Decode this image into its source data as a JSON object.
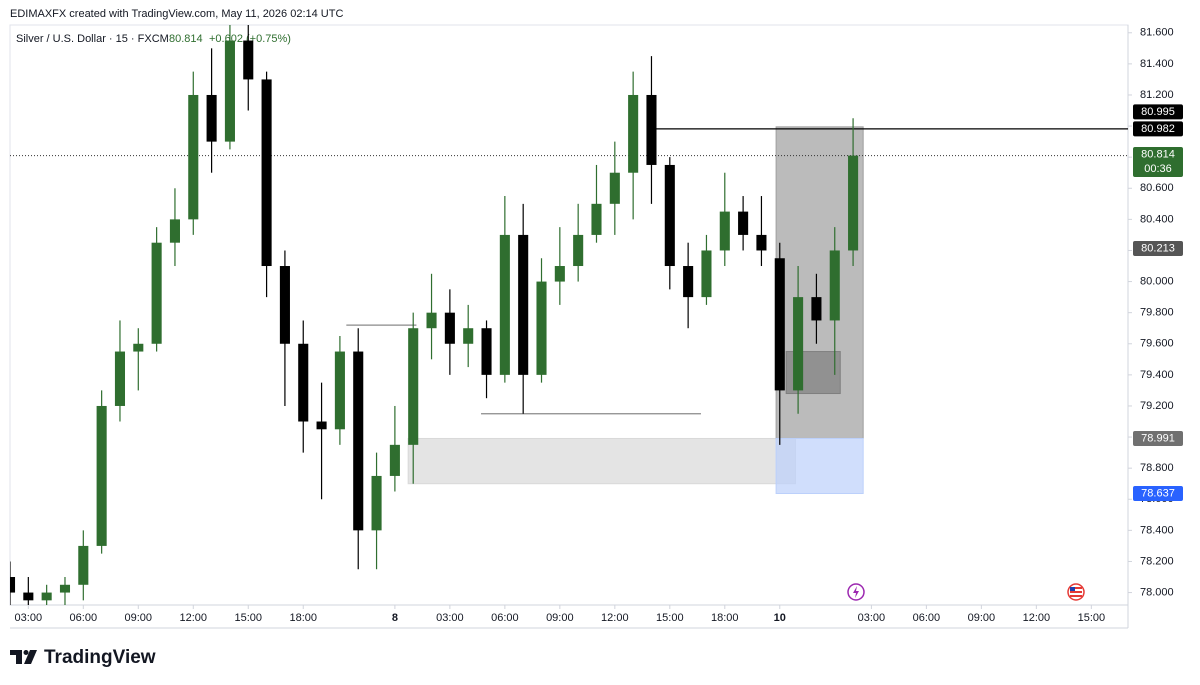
{
  "chart_data": {
    "type": "candlestick",
    "attribution": "EDIMAXFX created with TradingView.com, May 11, 2026 02:14 UTC",
    "title": "Silver / U.S. Dollar · 15 · FXCM",
    "last": "80.814",
    "change": "+0.602 (+0.75%)",
    "brand": "TradingView",
    "up_color": "#2f6e2f",
    "down_color": "#000000",
    "grid": false,
    "xlim": [
      -4,
      240
    ],
    "ylim": [
      77.92,
      81.65
    ],
    "xticks": [
      {
        "value": 0,
        "label": "03:00"
      },
      {
        "value": 12,
        "label": "06:00"
      },
      {
        "value": 24,
        "label": "09:00"
      },
      {
        "value": 36,
        "label": "12:00"
      },
      {
        "value": 48,
        "label": "15:00"
      },
      {
        "value": 60,
        "label": "18:00"
      },
      {
        "value": 80,
        "label": "8",
        "bold": true
      },
      {
        "value": 92,
        "label": "03:00"
      },
      {
        "value": 104,
        "label": "06:00"
      },
      {
        "value": 116,
        "label": "09:00"
      },
      {
        "value": 128,
        "label": "12:00"
      },
      {
        "value": 140,
        "label": "15:00"
      },
      {
        "value": 152,
        "label": "18:00"
      },
      {
        "value": 164,
        "label": "10",
        "bold": true
      },
      {
        "value": 184,
        "label": "03:00"
      },
      {
        "value": 196,
        "label": "06:00"
      },
      {
        "value": 208,
        "label": "09:00"
      },
      {
        "value": 220,
        "label": "12:00"
      },
      {
        "value": 232,
        "label": "15:00"
      }
    ],
    "yticks": [
      {
        "value": 78.0,
        "label": "78.000"
      },
      {
        "value": 78.2,
        "label": "78.200"
      },
      {
        "value": 78.4,
        "label": "78.400"
      },
      {
        "value": 78.6,
        "label": "78.600"
      },
      {
        "value": 78.8,
        "label": "78.800"
      },
      {
        "value": 79.0,
        "label": "79.000"
      },
      {
        "value": 79.2,
        "label": "79.200"
      },
      {
        "value": 79.4,
        "label": "79.400"
      },
      {
        "value": 79.6,
        "label": "79.600"
      },
      {
        "value": 79.8,
        "label": "79.800"
      },
      {
        "value": 80.0,
        "label": "80.000"
      },
      {
        "value": 80.2,
        "label": "80.200"
      },
      {
        "value": 80.4,
        "label": "80.400"
      },
      {
        "value": 80.6,
        "label": "80.600"
      },
      {
        "value": 80.8,
        "label": "80.800"
      },
      {
        "value": 81.0,
        "label": "81.000"
      },
      {
        "value": 81.2,
        "label": "81.200"
      },
      {
        "value": 81.4,
        "label": "81.400"
      },
      {
        "value": 81.6,
        "label": "81.600"
      }
    ],
    "x": [
      -4,
      0,
      4,
      8,
      12,
      16,
      20,
      24,
      28,
      32,
      36,
      40,
      44,
      48,
      52,
      56,
      60,
      64,
      68,
      72,
      76,
      80,
      84,
      88,
      92,
      96,
      100,
      104,
      108,
      112,
      116,
      120,
      124,
      128,
      132,
      136,
      140,
      144,
      148,
      152,
      156,
      160,
      164,
      168,
      172,
      176,
      180
    ],
    "open": [
      78.1,
      78.0,
      77.95,
      78.0,
      78.05,
      78.3,
      79.2,
      79.55,
      79.6,
      80.25,
      80.4,
      81.2,
      80.9,
      81.55,
      81.3,
      80.1,
      79.6,
      79.1,
      79.05,
      79.55,
      78.4,
      78.75,
      78.95,
      79.7,
      79.8,
      79.6,
      79.7,
      79.4,
      80.3,
      79.4,
      80.0,
      80.1,
      80.3,
      80.5,
      80.7,
      81.2,
      80.75,
      80.1,
      79.9,
      80.2,
      80.45,
      80.3,
      80.15,
      79.3,
      79.9,
      79.75,
      80.2
    ],
    "high": [
      78.2,
      78.1,
      78.05,
      78.1,
      78.4,
      79.3,
      79.75,
      79.7,
      80.35,
      80.6,
      81.35,
      81.5,
      81.75,
      81.7,
      81.35,
      80.2,
      79.75,
      79.35,
      79.65,
      79.7,
      78.9,
      79.2,
      79.8,
      80.05,
      79.95,
      79.85,
      79.75,
      80.55,
      80.5,
      80.15,
      80.35,
      80.5,
      80.75,
      80.9,
      81.35,
      81.45,
      80.8,
      80.25,
      80.3,
      80.7,
      80.55,
      80.55,
      80.25,
      80.1,
      80.05,
      80.35,
      81.05
    ],
    "low": [
      77.9,
      77.85,
      77.85,
      77.9,
      77.95,
      78.25,
      79.1,
      79.3,
      79.55,
      80.1,
      80.3,
      80.7,
      80.85,
      81.1,
      79.9,
      79.2,
      78.9,
      78.6,
      78.95,
      78.15,
      78.15,
      78.65,
      78.7,
      79.5,
      79.4,
      79.45,
      79.25,
      79.35,
      79.15,
      79.35,
      79.85,
      80.0,
      80.25,
      80.3,
      80.4,
      80.5,
      79.95,
      79.7,
      79.85,
      80.1,
      80.2,
      80.1,
      78.95,
      79.15,
      79.6,
      79.4,
      80.1
    ],
    "close": [
      78.0,
      77.95,
      78.0,
      78.05,
      78.3,
      79.2,
      79.55,
      79.6,
      80.25,
      80.4,
      81.2,
      80.9,
      81.55,
      81.3,
      80.1,
      79.6,
      79.1,
      79.05,
      79.55,
      78.4,
      78.75,
      78.95,
      79.7,
      79.8,
      79.6,
      79.7,
      79.4,
      80.3,
      79.4,
      80.0,
      80.1,
      80.3,
      80.5,
      80.7,
      81.2,
      80.75,
      80.1,
      79.9,
      80.2,
      80.45,
      80.3,
      80.2,
      79.3,
      79.9,
      79.75,
      80.2,
      80.81
    ],
    "zones": [
      {
        "x": [
          82.9,
          167.4
        ],
        "y": [
          78.7,
          78.991
        ],
        "color": "#d9d9d9"
      },
      {
        "x": [
          163.2,
          182.2
        ],
        "y": [
          78.991,
          80.995
        ],
        "color": "#9e9e9e"
      },
      {
        "x": [
          163.2,
          182.2
        ],
        "y": [
          78.637,
          78.991
        ],
        "color": "#bcd0fb"
      },
      {
        "x": [
          165.4,
          177.2
        ],
        "y": [
          79.28,
          79.55
        ],
        "color": "#7f7f7f"
      }
    ],
    "lines": [
      {
        "x": [
          135.3,
          240
        ],
        "y": 80.982,
        "color": "#000000"
      },
      {
        "x": [
          69.4,
          84.7
        ],
        "y": 79.72,
        "color": "#8a8a8a"
      },
      {
        "x": [
          98.8,
          146.8
        ],
        "y": 79.15,
        "color": "#8a8a8a"
      }
    ],
    "price_labels": [
      {
        "value": 80.995,
        "color": "#000000"
      },
      {
        "value": 80.982,
        "color": "#000000"
      },
      {
        "value": 80.814,
        "color": "#2f6e2f",
        "sub": "00:36"
      },
      {
        "value": 80.213,
        "color": "#555555"
      },
      {
        "value": 78.991,
        "color": "#707070"
      },
      {
        "value": 78.637,
        "color": "#2962ff"
      }
    ]
  }
}
